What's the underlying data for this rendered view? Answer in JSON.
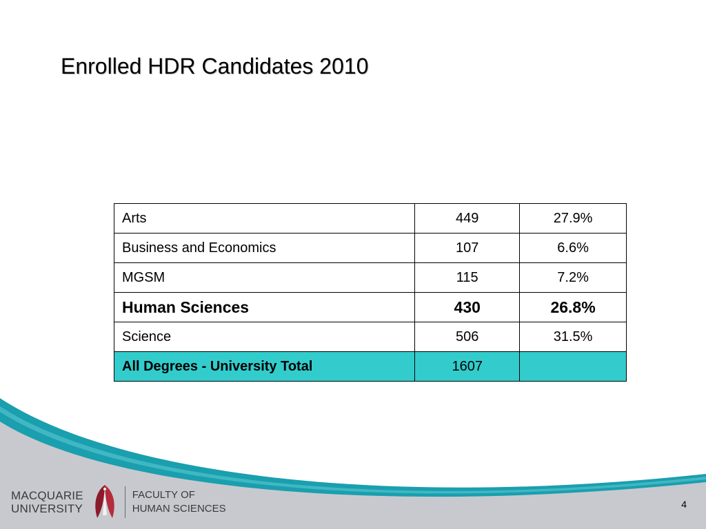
{
  "slide": {
    "title": "Enrolled HDR Candidates 2010",
    "page_number": "4"
  },
  "table": {
    "rows": [
      {
        "faculty": "Arts",
        "count": "449",
        "percent": "27.9%",
        "bold": false
      },
      {
        "faculty": "Business and Economics",
        "count": "107",
        "percent": "6.6%",
        "bold": false
      },
      {
        "faculty": "MGSM",
        "count": "115",
        "percent": "7.2%",
        "bold": false
      },
      {
        "faculty": "Human Sciences",
        "count": "430",
        "percent": "26.8%",
        "bold": true
      },
      {
        "faculty": "Science",
        "count": "506",
        "percent": "31.5%",
        "bold": false
      }
    ],
    "total": {
      "faculty": "All Degrees - University Total",
      "count": "1607",
      "percent": ""
    }
  },
  "footer": {
    "university_line1": "MACQUARIE",
    "university_line2": "UNIVERSITY",
    "faculty_line1": "FACULTY OF",
    "faculty_line2": "HUMAN SCIENCES"
  },
  "colors": {
    "total_row_fill": "#33cccc",
    "wave_teal": "#1a9fae",
    "footer_grey": "#c8c9cf",
    "logo_red": "#8b1a2b"
  }
}
